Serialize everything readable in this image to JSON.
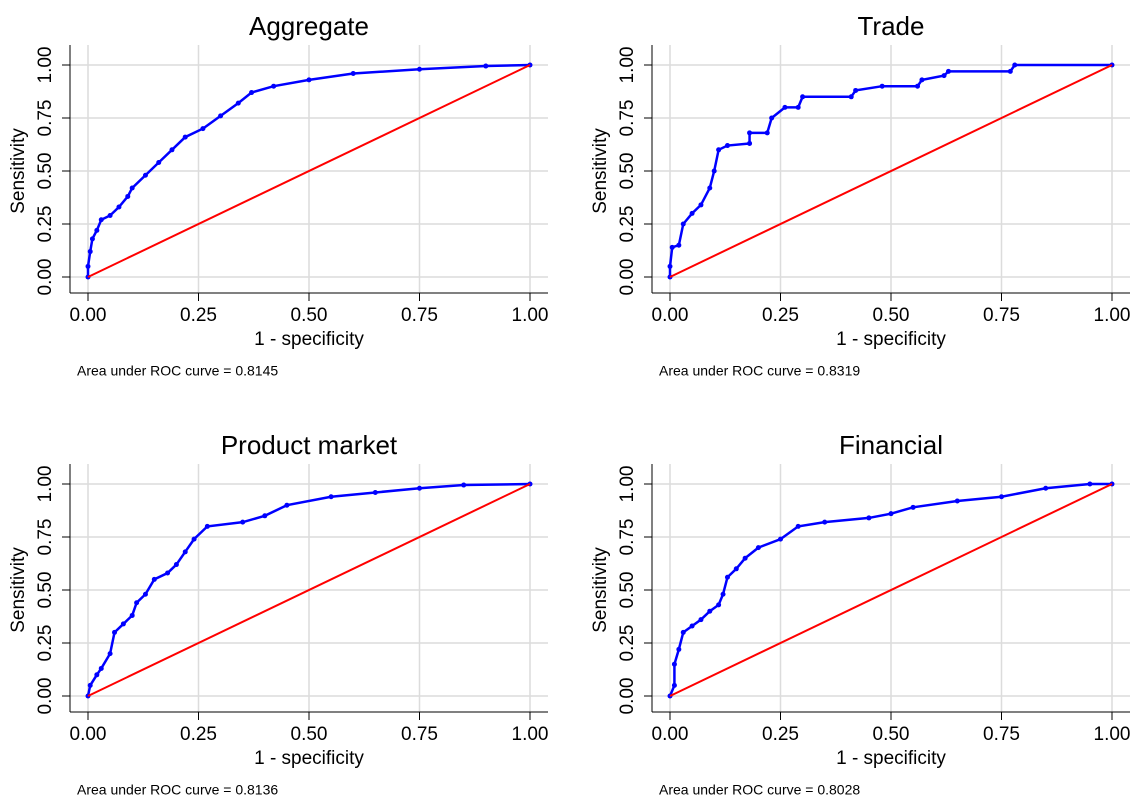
{
  "chart_data": [
    {
      "type": "line",
      "title": "Aggregate",
      "xlabel": "1 - specificity",
      "ylabel": "Sensitivity",
      "note": "Area under ROC curve = 0.8145",
      "xlim": [
        0,
        1
      ],
      "ylim": [
        0,
        1
      ],
      "grid": true,
      "xticks": [
        {
          "value": 0,
          "label": "0.00"
        },
        {
          "value": 0.25,
          "label": "0.25"
        },
        {
          "value": 0.5,
          "label": "0.50"
        },
        {
          "value": 0.75,
          "label": "0.75"
        },
        {
          "value": 1,
          "label": "1.00"
        }
      ],
      "yticks": [
        {
          "value": 0,
          "label": "0.00"
        },
        {
          "value": 0.25,
          "label": "0.25"
        },
        {
          "value": 0.5,
          "label": "0.50"
        },
        {
          "value": 0.75,
          "label": "0.75"
        },
        {
          "value": 1,
          "label": "1.00"
        }
      ],
      "series": [
        {
          "color": "#0000ff",
          "markers": true,
          "x": [
            0,
            0,
            0.005,
            0.01,
            0.02,
            0.03,
            0.05,
            0.07,
            0.09,
            0.1,
            0.13,
            0.16,
            0.19,
            0.22,
            0.26,
            0.3,
            0.34,
            0.37,
            0.42,
            0.5,
            0.6,
            0.75,
            0.9,
            1
          ],
          "values": [
            0,
            0.05,
            0.12,
            0.18,
            0.22,
            0.27,
            0.29,
            0.33,
            0.38,
            0.42,
            0.48,
            0.54,
            0.6,
            0.66,
            0.7,
            0.76,
            0.82,
            0.87,
            0.9,
            0.93,
            0.96,
            0.98,
            0.995,
            1
          ]
        },
        {
          "color": "#ff0000",
          "markers": false,
          "x": [
            0,
            1
          ],
          "values": [
            0,
            1
          ]
        }
      ]
    },
    {
      "type": "line",
      "title": "Trade",
      "xlabel": "1 - specificity",
      "ylabel": "Sensitivity",
      "note": "Area under ROC curve = 0.8319",
      "xlim": [
        0,
        1
      ],
      "ylim": [
        0,
        1
      ],
      "grid": true,
      "xticks": [
        {
          "value": 0,
          "label": "0.00"
        },
        {
          "value": 0.25,
          "label": "0.25"
        },
        {
          "value": 0.5,
          "label": "0.50"
        },
        {
          "value": 0.75,
          "label": "0.75"
        },
        {
          "value": 1,
          "label": "1.00"
        }
      ],
      "yticks": [
        {
          "value": 0,
          "label": "0.00"
        },
        {
          "value": 0.25,
          "label": "0.25"
        },
        {
          "value": 0.5,
          "label": "0.50"
        },
        {
          "value": 0.75,
          "label": "0.75"
        },
        {
          "value": 1,
          "label": "1.00"
        }
      ],
      "series": [
        {
          "color": "#0000ff",
          "markers": true,
          "x": [
            0,
            0,
            0.005,
            0.02,
            0.03,
            0.05,
            0.07,
            0.09,
            0.1,
            0.11,
            0.13,
            0.18,
            0.18,
            0.22,
            0.23,
            0.26,
            0.29,
            0.3,
            0.41,
            0.42,
            0.48,
            0.56,
            0.57,
            0.62,
            0.63,
            0.77,
            0.78,
            1
          ],
          "values": [
            0,
            0.05,
            0.14,
            0.15,
            0.25,
            0.3,
            0.34,
            0.42,
            0.5,
            0.6,
            0.62,
            0.63,
            0.68,
            0.68,
            0.75,
            0.8,
            0.8,
            0.85,
            0.85,
            0.88,
            0.9,
            0.9,
            0.93,
            0.95,
            0.97,
            0.97,
            1,
            1
          ]
        },
        {
          "color": "#ff0000",
          "markers": false,
          "x": [
            0,
            1
          ],
          "values": [
            0,
            1
          ]
        }
      ]
    },
    {
      "type": "line",
      "title": "Product market",
      "xlabel": "1 - specificity",
      "ylabel": "Sensitivity",
      "note": "Area under ROC curve = 0.8136",
      "xlim": [
        0,
        1
      ],
      "ylim": [
        0,
        1
      ],
      "grid": true,
      "xticks": [
        {
          "value": 0,
          "label": "0.00"
        },
        {
          "value": 0.25,
          "label": "0.25"
        },
        {
          "value": 0.5,
          "label": "0.50"
        },
        {
          "value": 0.75,
          "label": "0.75"
        },
        {
          "value": 1,
          "label": "1.00"
        }
      ],
      "yticks": [
        {
          "value": 0,
          "label": "0.00"
        },
        {
          "value": 0.25,
          "label": "0.25"
        },
        {
          "value": 0.5,
          "label": "0.50"
        },
        {
          "value": 0.75,
          "label": "0.75"
        },
        {
          "value": 1,
          "label": "1.00"
        }
      ],
      "series": [
        {
          "color": "#0000ff",
          "markers": true,
          "x": [
            0,
            0.005,
            0.02,
            0.03,
            0.05,
            0.06,
            0.08,
            0.1,
            0.11,
            0.13,
            0.15,
            0.18,
            0.2,
            0.22,
            0.24,
            0.27,
            0.35,
            0.4,
            0.45,
            0.55,
            0.65,
            0.75,
            0.85,
            1
          ],
          "values": [
            0,
            0.05,
            0.1,
            0.13,
            0.2,
            0.3,
            0.34,
            0.38,
            0.44,
            0.48,
            0.55,
            0.58,
            0.62,
            0.68,
            0.74,
            0.8,
            0.82,
            0.85,
            0.9,
            0.94,
            0.96,
            0.98,
            0.995,
            1
          ]
        },
        {
          "color": "#ff0000",
          "markers": false,
          "x": [
            0,
            1
          ],
          "values": [
            0,
            1
          ]
        }
      ]
    },
    {
      "type": "line",
      "title": "Financial",
      "xlabel": "1 - specificity",
      "ylabel": "Sensitivity",
      "note": "Area under ROC curve = 0.8028",
      "xlim": [
        0,
        1
      ],
      "ylim": [
        0,
        1
      ],
      "grid": true,
      "xticks": [
        {
          "value": 0,
          "label": "0.00"
        },
        {
          "value": 0.25,
          "label": "0.25"
        },
        {
          "value": 0.5,
          "label": "0.50"
        },
        {
          "value": 0.75,
          "label": "0.75"
        },
        {
          "value": 1,
          "label": "1.00"
        }
      ],
      "yticks": [
        {
          "value": 0,
          "label": "0.00"
        },
        {
          "value": 0.25,
          "label": "0.25"
        },
        {
          "value": 0.5,
          "label": "0.50"
        },
        {
          "value": 0.75,
          "label": "0.75"
        },
        {
          "value": 1,
          "label": "1.00"
        }
      ],
      "series": [
        {
          "color": "#0000ff",
          "markers": true,
          "x": [
            0,
            0.01,
            0.01,
            0.02,
            0.03,
            0.05,
            0.07,
            0.09,
            0.11,
            0.12,
            0.13,
            0.15,
            0.17,
            0.2,
            0.25,
            0.29,
            0.35,
            0.45,
            0.5,
            0.55,
            0.65,
            0.75,
            0.85,
            0.95,
            1
          ],
          "values": [
            0,
            0.05,
            0.15,
            0.22,
            0.3,
            0.33,
            0.36,
            0.4,
            0.43,
            0.48,
            0.56,
            0.6,
            0.65,
            0.7,
            0.74,
            0.8,
            0.82,
            0.84,
            0.86,
            0.89,
            0.92,
            0.94,
            0.98,
            1,
            1
          ]
        },
        {
          "color": "#ff0000",
          "markers": false,
          "x": [
            0,
            1
          ],
          "values": [
            0,
            1
          ]
        }
      ]
    }
  ]
}
